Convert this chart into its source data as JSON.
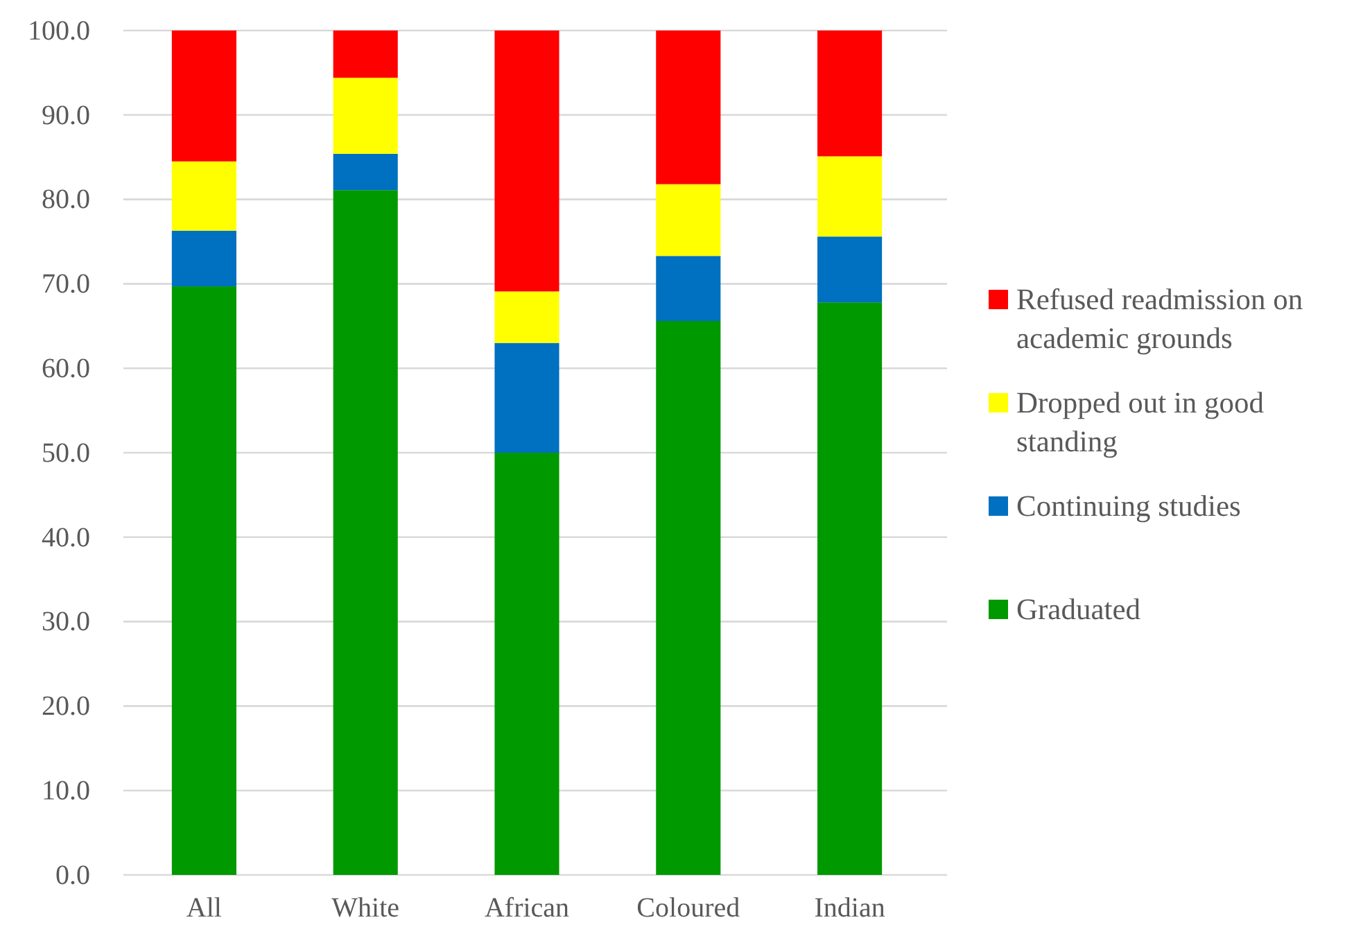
{
  "chart_data": {
    "type": "bar",
    "stacked": true,
    "categories": [
      "All",
      "White",
      "African",
      "Coloured",
      "Indian"
    ],
    "series": [
      {
        "name": "Graduated",
        "color": "#009900",
        "values": [
          69.7,
          81.1,
          50.0,
          65.6,
          67.8
        ]
      },
      {
        "name": "Continuing studies",
        "color": "#0070c0",
        "values": [
          6.6,
          4.3,
          13.0,
          7.7,
          7.8
        ]
      },
      {
        "name": "Dropped out in good standing",
        "color": "#ffff00",
        "values": [
          8.2,
          9.0,
          6.1,
          8.5,
          9.5
        ]
      },
      {
        "name": "Refused readmission on academic grounds",
        "color": "#ff0000",
        "values": [
          15.5,
          5.6,
          30.9,
          18.2,
          14.9
        ]
      }
    ],
    "ylim": [
      0,
      100
    ],
    "yticks": [
      {
        "value": 0,
        "label": "0.0"
      },
      {
        "value": 10,
        "label": "10.0"
      },
      {
        "value": 20,
        "label": "20.0"
      },
      {
        "value": 30,
        "label": "30.0"
      },
      {
        "value": 40,
        "label": "40.0"
      },
      {
        "value": 50,
        "label": "50.0"
      },
      {
        "value": 60,
        "label": "60.0"
      },
      {
        "value": 70,
        "label": "70.0"
      },
      {
        "value": 80,
        "label": "80.0"
      },
      {
        "value": 90,
        "label": "90.0"
      },
      {
        "value": 100,
        "label": "100.0"
      }
    ],
    "grid": "y",
    "legend": "right"
  }
}
